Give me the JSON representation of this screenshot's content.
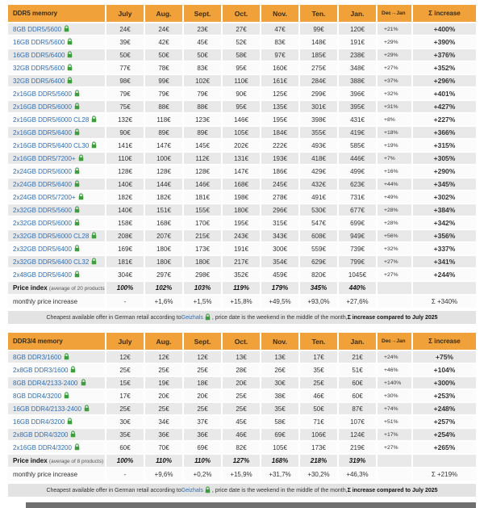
{
  "colors": {
    "header_bg": "#F0A139",
    "row_alt": "#E9E9E9",
    "row_base": "#FBFBFB",
    "link_blue": "#2E6FB7",
    "lock_green": "#3C9E3C",
    "footnote_bg": "#E3E3E3",
    "bottom_strip": "#6F6F6F"
  },
  "tables": [
    {
      "title": "DDR5 memory",
      "months": [
        "July",
        "Aug.",
        "Sept.",
        "Oct.",
        "Nov.",
        "Ten.",
        "Jan."
      ],
      "dec_jan_header": "Dec→Jan",
      "sum_header": "Σ increase",
      "rows": [
        {
          "name": "8GB DDR5/5600",
          "prices": [
            "24€",
            "24€",
            "23€",
            "27€",
            "47€",
            "99€",
            "120€"
          ],
          "dec_jan": "+21%",
          "sum": "+400%"
        },
        {
          "name": "16GB DDR5/5600",
          "prices": [
            "39€",
            "42€",
            "45€",
            "52€",
            "83€",
            "148€",
            "191€"
          ],
          "dec_jan": "+29%",
          "sum": "+390%"
        },
        {
          "name": "16GB DDR5/6400",
          "prices": [
            "50€",
            "50€",
            "50€",
            "58€",
            "97€",
            "185€",
            "238€"
          ],
          "dec_jan": "+29%",
          "sum": "+376%"
        },
        {
          "name": "32GB DDR5/5600",
          "prices": [
            "77€",
            "78€",
            "83€",
            "95€",
            "160€",
            "275€",
            "348€"
          ],
          "dec_jan": "+27%",
          "sum": "+352%"
        },
        {
          "name": "32GB DDR5/6400",
          "prices": [
            "98€",
            "99€",
            "102€",
            "110€",
            "161€",
            "284€",
            "388€"
          ],
          "dec_jan": "+37%",
          "sum": "+296%"
        },
        {
          "name": "2x16GB DDR5/5600",
          "prices": [
            "79€",
            "79€",
            "79€",
            "90€",
            "125€",
            "299€",
            "396€"
          ],
          "dec_jan": "+32%",
          "sum": "+401%"
        },
        {
          "name": "2x16GB DDR5/6000",
          "prices": [
            "75€",
            "88€",
            "88€",
            "95€",
            "135€",
            "301€",
            "395€"
          ],
          "dec_jan": "+31%",
          "sum": "+427%"
        },
        {
          "name": "2x16GB DDR5/6000 CL28",
          "prices": [
            "132€",
            "118€",
            "123€",
            "146€",
            "195€",
            "398€",
            "431€"
          ],
          "dec_jan": "+8%",
          "sum": "+227%"
        },
        {
          "name": "2x16GB DDR5/6400",
          "prices": [
            "90€",
            "89€",
            "89€",
            "105€",
            "184€",
            "355€",
            "419€"
          ],
          "dec_jan": "+18%",
          "sum": "+366%"
        },
        {
          "name": "2x16GB DDR5/6400 CL30",
          "prices": [
            "141€",
            "147€",
            "145€",
            "202€",
            "222€",
            "493€",
            "585€"
          ],
          "dec_jan": "+19%",
          "sum": "+315%"
        },
        {
          "name": "2x16GB DDR5/7200+",
          "prices": [
            "110€",
            "100€",
            "112€",
            "131€",
            "193€",
            "418€",
            "446€"
          ],
          "dec_jan": "+7%",
          "sum": "+305%"
        },
        {
          "name": "2x24GB DDR5/6000",
          "prices": [
            "128€",
            "128€",
            "128€",
            "147€",
            "186€",
            "429€",
            "499€"
          ],
          "dec_jan": "+16%",
          "sum": "+290%"
        },
        {
          "name": "2x24GB DDR5/6400",
          "prices": [
            "140€",
            "144€",
            "146€",
            "168€",
            "245€",
            "432€",
            "623€"
          ],
          "dec_jan": "+44%",
          "sum": "+345%"
        },
        {
          "name": "2x24GB DDR5/7200+",
          "prices": [
            "182€",
            "182€",
            "181€",
            "198€",
            "278€",
            "491€",
            "731€"
          ],
          "dec_jan": "+49%",
          "sum": "+302%"
        },
        {
          "name": "2x32GB DDR5/5600",
          "prices": [
            "140€",
            "151€",
            "155€",
            "180€",
            "296€",
            "530€",
            "677€"
          ],
          "dec_jan": "+28%",
          "sum": "+384%"
        },
        {
          "name": "2x32GB DDR5/6000",
          "prices": [
            "158€",
            "168€",
            "170€",
            "195€",
            "315€",
            "547€",
            "699€"
          ],
          "dec_jan": "+28%",
          "sum": "+342%"
        },
        {
          "name": "2x32GB DDR5/6000 CL28",
          "prices": [
            "208€",
            "207€",
            "215€",
            "243€",
            "343€",
            "608€",
            "949€"
          ],
          "dec_jan": "+56%",
          "sum": "+356%"
        },
        {
          "name": "2x32GB DDR5/6400",
          "prices": [
            "169€",
            "180€",
            "173€",
            "191€",
            "300€",
            "559€",
            "739€"
          ],
          "dec_jan": "+32%",
          "sum": "+337%"
        },
        {
          "name": "2x32GB DDR5/6400 CL32",
          "prices": [
            "181€",
            "180€",
            "180€",
            "217€",
            "354€",
            "629€",
            "799€"
          ],
          "dec_jan": "+27%",
          "sum": "+341%"
        },
        {
          "name": "2x48GB DDR5/6400",
          "prices": [
            "304€",
            "297€",
            "298€",
            "352€",
            "459€",
            "820€",
            "1045€"
          ],
          "dec_jan": "+27%",
          "sum": "+244%"
        }
      ],
      "price_index": {
        "label": "Price index",
        "sublabel": "(average of 20 products)",
        "values": [
          "100%",
          "102%",
          "103%",
          "119%",
          "179%",
          "345%",
          "440%"
        ]
      },
      "monthly": {
        "label": "monthly price increase",
        "values": [
          "-",
          "+1,6%",
          "+1,5%",
          "+15,8%",
          "+49,5%",
          "+93,0%",
          "+27,6%"
        ],
        "sum": "Σ +340%"
      },
      "footnote": {
        "prefix": "Cheapest available offer in German retail according to ",
        "link": "Geizhals",
        "middle": " , price date is the weekend in the middle of the month, ",
        "bold": "Σ increase compared to July 2025"
      }
    },
    {
      "title": "DDR3/4 memory",
      "months": [
        "July",
        "Aug.",
        "Sept.",
        "Oct.",
        "Nov.",
        "Ten.",
        "Jan."
      ],
      "dec_jan_header": "Dec→Jan",
      "sum_header": "Σ increase",
      "rows": [
        {
          "name": "8GB DDR3/1600",
          "prices": [
            "12€",
            "12€",
            "12€",
            "13€",
            "13€",
            "17€",
            "21€"
          ],
          "dec_jan": "+24%",
          "sum": "+75%"
        },
        {
          "name": "2x8GB DDR3/1600",
          "prices": [
            "25€",
            "25€",
            "25€",
            "28€",
            "26€",
            "35€",
            "51€"
          ],
          "dec_jan": "+46%",
          "sum": "+104%"
        },
        {
          "name": "8GB DDR4/2133-2400",
          "prices": [
            "15€",
            "19€",
            "18€",
            "20€",
            "30€",
            "25€",
            "60€"
          ],
          "dec_jan": "+140%",
          "sum": "+300%"
        },
        {
          "name": "8GB DDR4/3200",
          "prices": [
            "17€",
            "20€",
            "20€",
            "25€",
            "38€",
            "46€",
            "60€"
          ],
          "dec_jan": "+30%",
          "sum": "+253%"
        },
        {
          "name": "16GB DDR4/2133-2400",
          "prices": [
            "25€",
            "25€",
            "25€",
            "25€",
            "35€",
            "50€",
            "87€"
          ],
          "dec_jan": "+74%",
          "sum": "+248%"
        },
        {
          "name": "16GB DDR4/3200",
          "prices": [
            "30€",
            "34€",
            "37€",
            "45€",
            "58€",
            "71€",
            "107€"
          ],
          "dec_jan": "+51%",
          "sum": "+257%"
        },
        {
          "name": "2x8GB DDR4/3200",
          "prices": [
            "35€",
            "36€",
            "36€",
            "46€",
            "69€",
            "106€",
            "124€"
          ],
          "dec_jan": "+17%",
          "sum": "+254%"
        },
        {
          "name": "2x16GB DDR4/3200",
          "prices": [
            "60€",
            "70€",
            "69€",
            "82€",
            "105€",
            "173€",
            "219€"
          ],
          "dec_jan": "+27%",
          "sum": "+265%"
        }
      ],
      "price_index": {
        "label": "Price index",
        "sublabel": "(average of 8 products)",
        "values": [
          "100%",
          "110%",
          "110%",
          "127%",
          "168%",
          "218%",
          "319%"
        ]
      },
      "monthly": {
        "label": "monthly price increase",
        "values": [
          "-",
          "+9,6%",
          "+0,2%",
          "+15,9%",
          "+31,7%",
          "+30,2%",
          "+46,3%"
        ],
        "sum": "Σ +219%"
      },
      "footnote": {
        "prefix": "Cheapest available offer in German retail according to ",
        "link": "Geizhals",
        "middle": " , price date is the weekend in the middle of the month, ",
        "bold": "Σ increase compared to July 2025"
      }
    }
  ]
}
